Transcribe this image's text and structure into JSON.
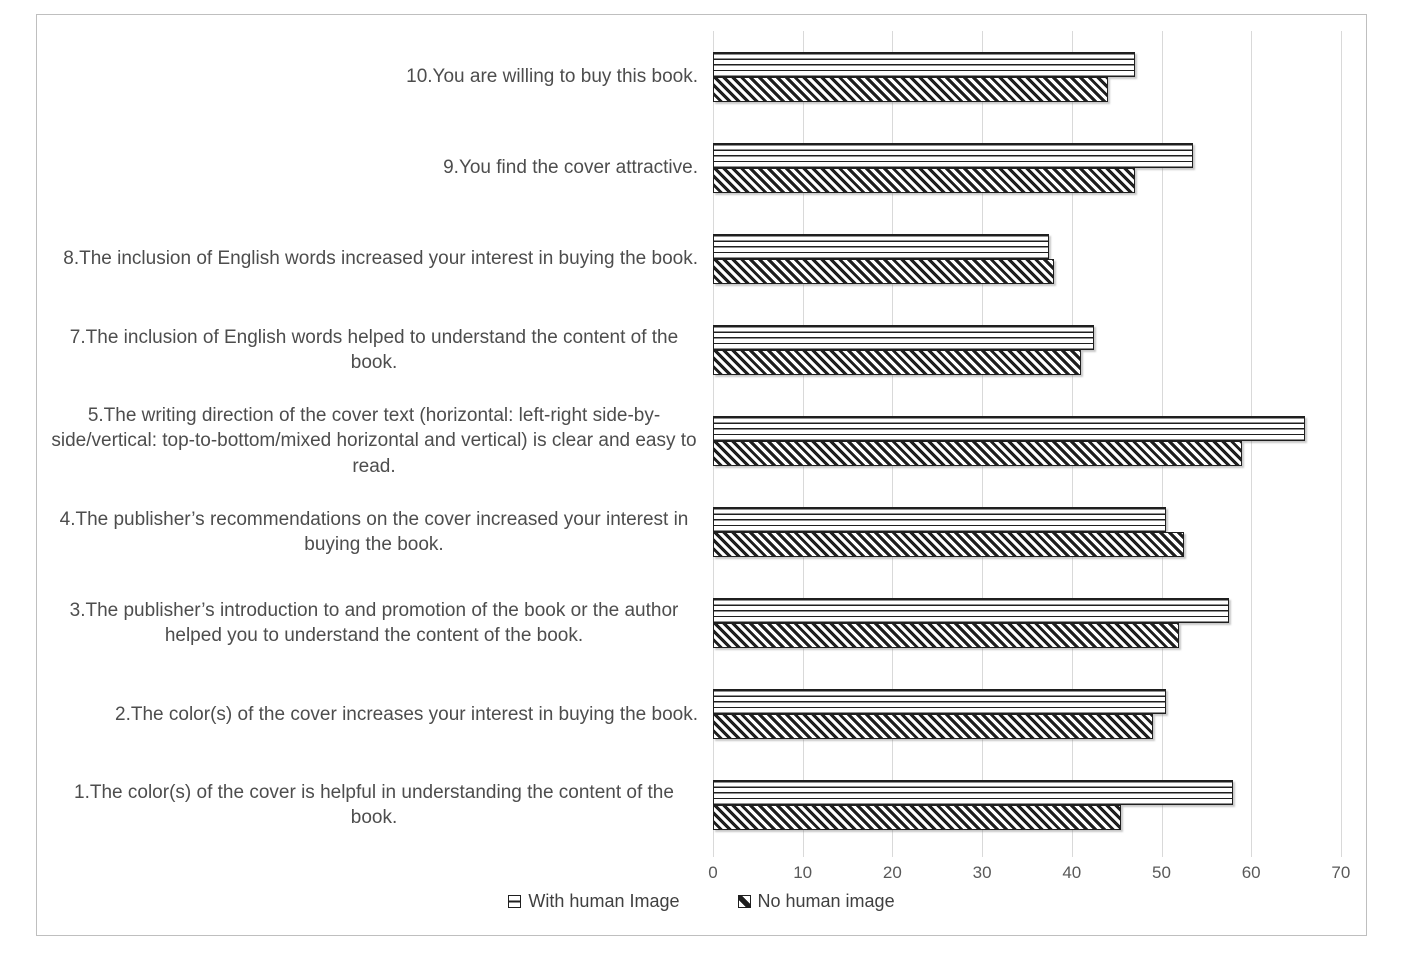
{
  "chart_data": {
    "type": "bar",
    "orientation": "horizontal",
    "title": "",
    "xlabel": "",
    "ylabel": "",
    "categories": [
      "10.You are willing to buy this book.",
      "9.You find the cover attractive.",
      "8.The inclusion of English words increased your interest in buying the book.",
      "7.The inclusion of English words helped to understand the content of the book.",
      "5.The writing direction of the cover text (horizontal: left-right side-by-side/vertical: top-to-bottom/mixed horizontal and vertical) is clear and easy to read.",
      "4.The publisher’s recommendations on the cover increased your interest in buying the book.",
      "3.The publisher’s introduction to and promotion of the book or the author helped you to understand the content of the book.",
      "2.The color(s) of the cover increases your interest in buying the book.",
      "1.The color(s) of the cover is helpful in understanding the content of the book."
    ],
    "series": [
      {
        "name": "With human Image",
        "pattern": "horizontal-lines",
        "values": [
          47,
          53.5,
          37.5,
          42.5,
          66,
          50.5,
          57.5,
          50.5,
          58
        ]
      },
      {
        "name": "No human image",
        "pattern": "diagonal-stripes",
        "values": [
          44,
          47,
          38,
          41,
          59,
          52.5,
          52,
          49,
          45.5
        ]
      }
    ],
    "x_ticks": [
      0,
      10,
      20,
      30,
      40,
      50,
      60,
      70
    ],
    "xlim": [
      0,
      73
    ],
    "grid": "vertical-gridlines",
    "legend_position": "bottom-center"
  },
  "colors": {
    "bar_pattern": "#1f1f1f",
    "bar_fill": "#ffffff",
    "gridline": "#d9d9d9",
    "tick_text": "#595959",
    "category_text": "#4d4d4d",
    "legend_text": "#404040",
    "frame_border": "#bfbfbf",
    "background": "#ffffff"
  }
}
